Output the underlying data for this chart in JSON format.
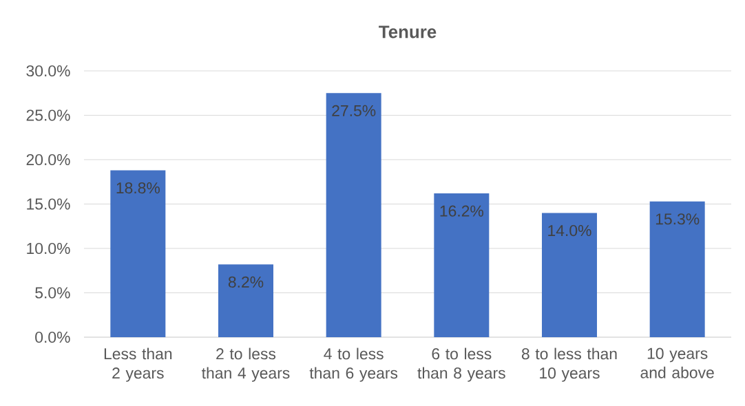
{
  "chart_data": {
    "type": "bar",
    "title": "Tenure",
    "categories": [
      "Less than 2 years",
      "2 to less than 4 years",
      "4 to less than 6 years",
      "6 to less than 8 years",
      "8 to less than 10 years",
      "10 years and above"
    ],
    "values": [
      18.8,
      8.2,
      27.5,
      16.2,
      14.0,
      15.3
    ],
    "value_labels": [
      "18.8%",
      "8.2%",
      "27.5%",
      "16.2%",
      "14.0%",
      "15.3%"
    ],
    "color": "#4472c4",
    "ylim": [
      0,
      30
    ],
    "yticks": [
      {
        "value": 0,
        "label": "0.0%"
      },
      {
        "value": 5,
        "label": "5.0%"
      },
      {
        "value": 10,
        "label": "10.0%"
      },
      {
        "value": 15,
        "label": "15.0%"
      },
      {
        "value": 20,
        "label": "20.0%"
      },
      {
        "value": 25,
        "label": "25.0%"
      },
      {
        "value": 30,
        "label": "30.0%"
      }
    ],
    "grid": "y"
  }
}
